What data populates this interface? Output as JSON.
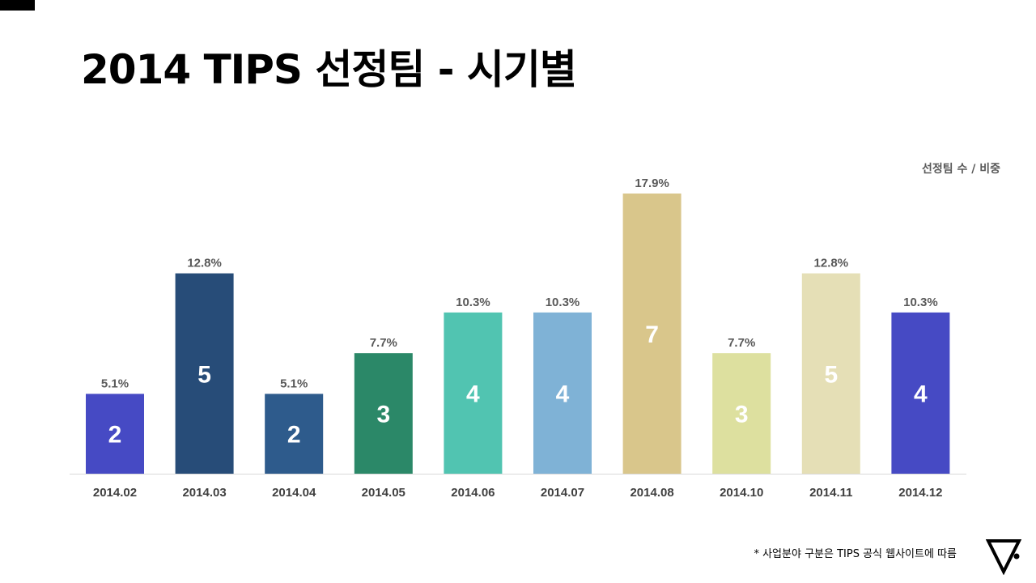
{
  "title": "2014 TIPS 선정팀 - 시기별",
  "legend_label": "선정팀 수 / 비중",
  "footnote": "* 사업분야 구분은 TIPS 공식 웹사이트에 따름",
  "colors": {
    "axis": "#d9d9d9",
    "value_label": "#595959",
    "category_label": "#404040",
    "count_label": "#ffffff"
  },
  "chart_data": {
    "type": "bar",
    "categories": [
      "2014.02",
      "2014.03",
      "2014.04",
      "2014.05",
      "2014.06",
      "2014.07",
      "2014.08",
      "2014.10",
      "2014.11",
      "2014.12"
    ],
    "counts": [
      2,
      5,
      2,
      3,
      4,
      4,
      7,
      3,
      5,
      4
    ],
    "values": [
      5.1,
      12.8,
      5.1,
      7.7,
      10.3,
      10.3,
      17.9,
      7.7,
      12.8,
      10.3
    ],
    "percent_labels": [
      "5.1%",
      "12.8%",
      "5.1%",
      "7.7%",
      "10.3%",
      "10.3%",
      "17.9%",
      "7.7%",
      "12.8%",
      "10.3%"
    ],
    "bar_colors": [
      "#464ac4",
      "#274c78",
      "#2e5b8c",
      "#2b8868",
      "#51c4b1",
      "#7fb2d6",
      "#d9c68b",
      "#dde09f",
      "#e5dfb6",
      "#464ac4"
    ],
    "ylim": [
      0,
      17.9
    ],
    "grid": false,
    "legend": "top-right"
  }
}
